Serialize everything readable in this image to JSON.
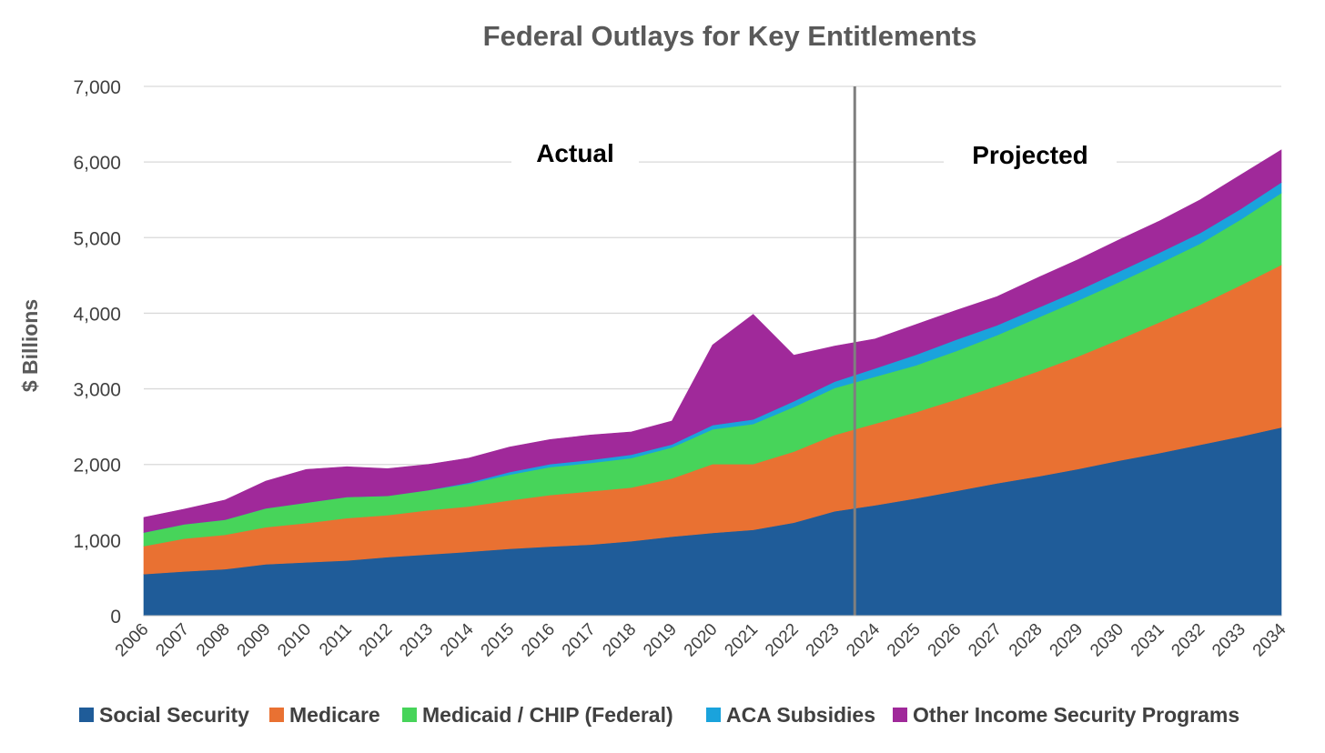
{
  "chart_data": {
    "type": "area",
    "stacked": true,
    "title": "Federal Outlays for Key Entitlements",
    "ylabel": "$ Billions",
    "xlabel": "",
    "ylim": [
      0,
      7000
    ],
    "yticks": [
      0,
      1000,
      2000,
      3000,
      4000,
      5000,
      6000,
      7000
    ],
    "ytick_labels": [
      "0",
      "1,000",
      "2,000",
      "3,000",
      "4,000",
      "5,000",
      "6,000",
      "7,000"
    ],
    "grid": "horizontal",
    "legend_position": "bottom",
    "x": [
      "2006",
      "2007",
      "2008",
      "2009",
      "2010",
      "2011",
      "2012",
      "2013",
      "2014",
      "2015",
      "2016",
      "2017",
      "2018",
      "2019",
      "2020",
      "2021",
      "2022",
      "2023",
      "2024",
      "2025",
      "2026",
      "2027",
      "2028",
      "2029",
      "2030",
      "2031",
      "2032",
      "2033",
      "2034"
    ],
    "divider_after": "2023",
    "annotations": [
      "Actual",
      "Projected"
    ],
    "series": [
      {
        "name": "Social Security",
        "color": "#1F5C99",
        "values": [
          550,
          585,
          615,
          680,
          705,
          730,
          775,
          810,
          845,
          885,
          915,
          940,
          985,
          1045,
          1095,
          1135,
          1230,
          1380,
          1460,
          1550,
          1650,
          1750,
          1840,
          1940,
          2050,
          2150,
          2260,
          2370,
          2490
        ]
      },
      {
        "name": "Medicare",
        "color": "#E97132",
        "values": [
          370,
          435,
          455,
          490,
          520,
          560,
          555,
          585,
          600,
          640,
          680,
          705,
          710,
          770,
          910,
          870,
          940,
          1010,
          1080,
          1140,
          1210,
          1290,
          1390,
          1490,
          1600,
          1730,
          1850,
          2000,
          2150
        ]
      },
      {
        "name": "Medicaid / CHIP (Federal)",
        "color": "#47D45A",
        "values": [
          180,
          190,
          200,
          250,
          270,
          280,
          255,
          265,
          300,
          340,
          370,
          375,
          390,
          410,
          460,
          530,
          590,
          620,
          620,
          620,
          640,
          670,
          710,
          740,
          760,
          780,
          810,
          870,
          950
        ]
      },
      {
        "name": "ACA Subsidies",
        "color": "#1AA3DC",
        "values": [
          0,
          0,
          0,
          0,
          0,
          0,
          0,
          0,
          15,
          35,
          40,
          40,
          45,
          40,
          55,
          60,
          75,
          85,
          110,
          140,
          150,
          130,
          130,
          130,
          140,
          140,
          140,
          140,
          140
        ]
      },
      {
        "name": "Other Income Security Programs",
        "color": "#A0299A",
        "values": [
          200,
          200,
          260,
          360,
          440,
          400,
          360,
          340,
          325,
          330,
          325,
          330,
          300,
          310,
          1060,
          1390,
          610,
          470,
          390,
          400,
          390,
          380,
          400,
          410,
          420,
          420,
          440,
          450,
          430
        ]
      }
    ]
  }
}
